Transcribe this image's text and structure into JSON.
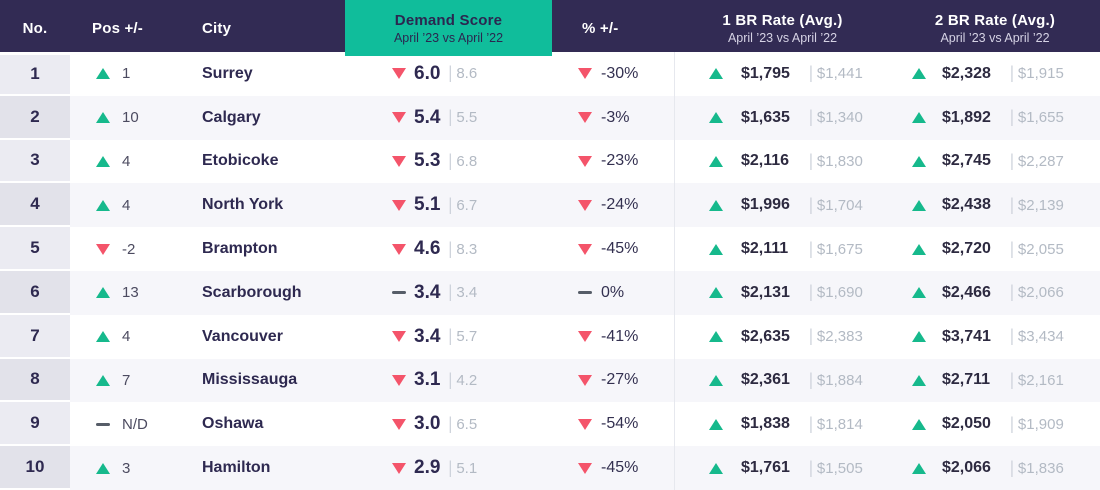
{
  "separator": "|",
  "colors": {
    "header_bg": "#322b54",
    "accent_teal": "#10bd9b",
    "positive_green": "#16b98c",
    "negative_red": "#f4546a",
    "flat_gray": "#565d68",
    "text_dark": "#2e2950",
    "text_muted": "#b3bac4",
    "row_alt_bg": "#f6f6fa",
    "no_col_bg_odd": "#ebebf2",
    "no_col_bg_even": "#e2e2ea",
    "divider": "#e6e8ee"
  },
  "chart_data": {
    "type": "table",
    "columns": {
      "no": "No.",
      "pos": "Pos +/-",
      "city": "City",
      "demand": "Demand Score",
      "demand_sub": "April ’23 vs April ’22",
      "pct": "% +/-",
      "br1": "1 BR Rate (Avg.)",
      "br1_sub": "April ’23 vs April ’22",
      "br2": "2 BR Rate (Avg.)",
      "br2_sub": "April ’23 vs April ’22"
    },
    "rows": [
      {
        "no": "1",
        "pos_dir": "up",
        "pos": "1",
        "city": "Surrey",
        "demand_dir": "down",
        "demand": "6.0",
        "demand_prev": "8.6",
        "pct_dir": "down",
        "pct": "-30%",
        "br1_dir": "up",
        "br1": "$1,795",
        "br1_prev": "$1,441",
        "br2_dir": "up",
        "br2": "$2,328",
        "br2_prev": "$1,915"
      },
      {
        "no": "2",
        "pos_dir": "up",
        "pos": "10",
        "city": "Calgary",
        "demand_dir": "down",
        "demand": "5.4",
        "demand_prev": "5.5",
        "pct_dir": "down",
        "pct": "-3%",
        "br1_dir": "up",
        "br1": "$1,635",
        "br1_prev": "$1,340",
        "br2_dir": "up",
        "br2": "$1,892",
        "br2_prev": "$1,655"
      },
      {
        "no": "3",
        "pos_dir": "up",
        "pos": "4",
        "city": "Etobicoke",
        "demand_dir": "down",
        "demand": "5.3",
        "demand_prev": "6.8",
        "pct_dir": "down",
        "pct": "-23%",
        "br1_dir": "up",
        "br1": "$2,116",
        "br1_prev": "$1,830",
        "br2_dir": "up",
        "br2": "$2,745",
        "br2_prev": "$2,287"
      },
      {
        "no": "4",
        "pos_dir": "up",
        "pos": "4",
        "city": "North York",
        "demand_dir": "down",
        "demand": "5.1",
        "demand_prev": "6.7",
        "pct_dir": "down",
        "pct": "-24%",
        "br1_dir": "up",
        "br1": "$1,996",
        "br1_prev": "$1,704",
        "br2_dir": "up",
        "br2": "$2,438",
        "br2_prev": "$2,139"
      },
      {
        "no": "5",
        "pos_dir": "down",
        "pos": "-2",
        "city": "Brampton",
        "demand_dir": "down",
        "demand": "4.6",
        "demand_prev": "8.3",
        "pct_dir": "down",
        "pct": "-45%",
        "br1_dir": "up",
        "br1": "$2,111",
        "br1_prev": "$1,675",
        "br2_dir": "up",
        "br2": "$2,720",
        "br2_prev": "$2,055"
      },
      {
        "no": "6",
        "pos_dir": "up",
        "pos": "13",
        "city": "Scarborough",
        "demand_dir": "flat",
        "demand": "3.4",
        "demand_prev": "3.4",
        "pct_dir": "flat",
        "pct": "0%",
        "br1_dir": "up",
        "br1": "$2,131",
        "br1_prev": "$1,690",
        "br2_dir": "up",
        "br2": "$2,466",
        "br2_prev": "$2,066"
      },
      {
        "no": "7",
        "pos_dir": "up",
        "pos": "4",
        "city": "Vancouver",
        "demand_dir": "down",
        "demand": "3.4",
        "demand_prev": "5.7",
        "pct_dir": "down",
        "pct": "-41%",
        "br1_dir": "up",
        "br1": "$2,635",
        "br1_prev": "$2,383",
        "br2_dir": "up",
        "br2": "$3,741",
        "br2_prev": "$3,434"
      },
      {
        "no": "8",
        "pos_dir": "up",
        "pos": "7",
        "city": "Mississauga",
        "demand_dir": "down",
        "demand": "3.1",
        "demand_prev": "4.2",
        "pct_dir": "down",
        "pct": "-27%",
        "br1_dir": "up",
        "br1": "$2,361",
        "br1_prev": "$1,884",
        "br2_dir": "up",
        "br2": "$2,711",
        "br2_prev": "$2,161"
      },
      {
        "no": "9",
        "pos_dir": "flat",
        "pos": "N/D",
        "city": "Oshawa",
        "demand_dir": "down",
        "demand": "3.0",
        "demand_prev": "6.5",
        "pct_dir": "down",
        "pct": "-54%",
        "br1_dir": "up",
        "br1": "$1,838",
        "br1_prev": "$1,814",
        "br2_dir": "up",
        "br2": "$2,050",
        "br2_prev": "$1,909"
      },
      {
        "no": "10",
        "pos_dir": "up",
        "pos": "3",
        "city": "Hamilton",
        "demand_dir": "down",
        "demand": "2.9",
        "demand_prev": "5.1",
        "pct_dir": "down",
        "pct": "-45%",
        "br1_dir": "up",
        "br1": "$1,761",
        "br1_prev": "$1,505",
        "br2_dir": "up",
        "br2": "$2,066",
        "br2_prev": "$1,836"
      }
    ]
  }
}
